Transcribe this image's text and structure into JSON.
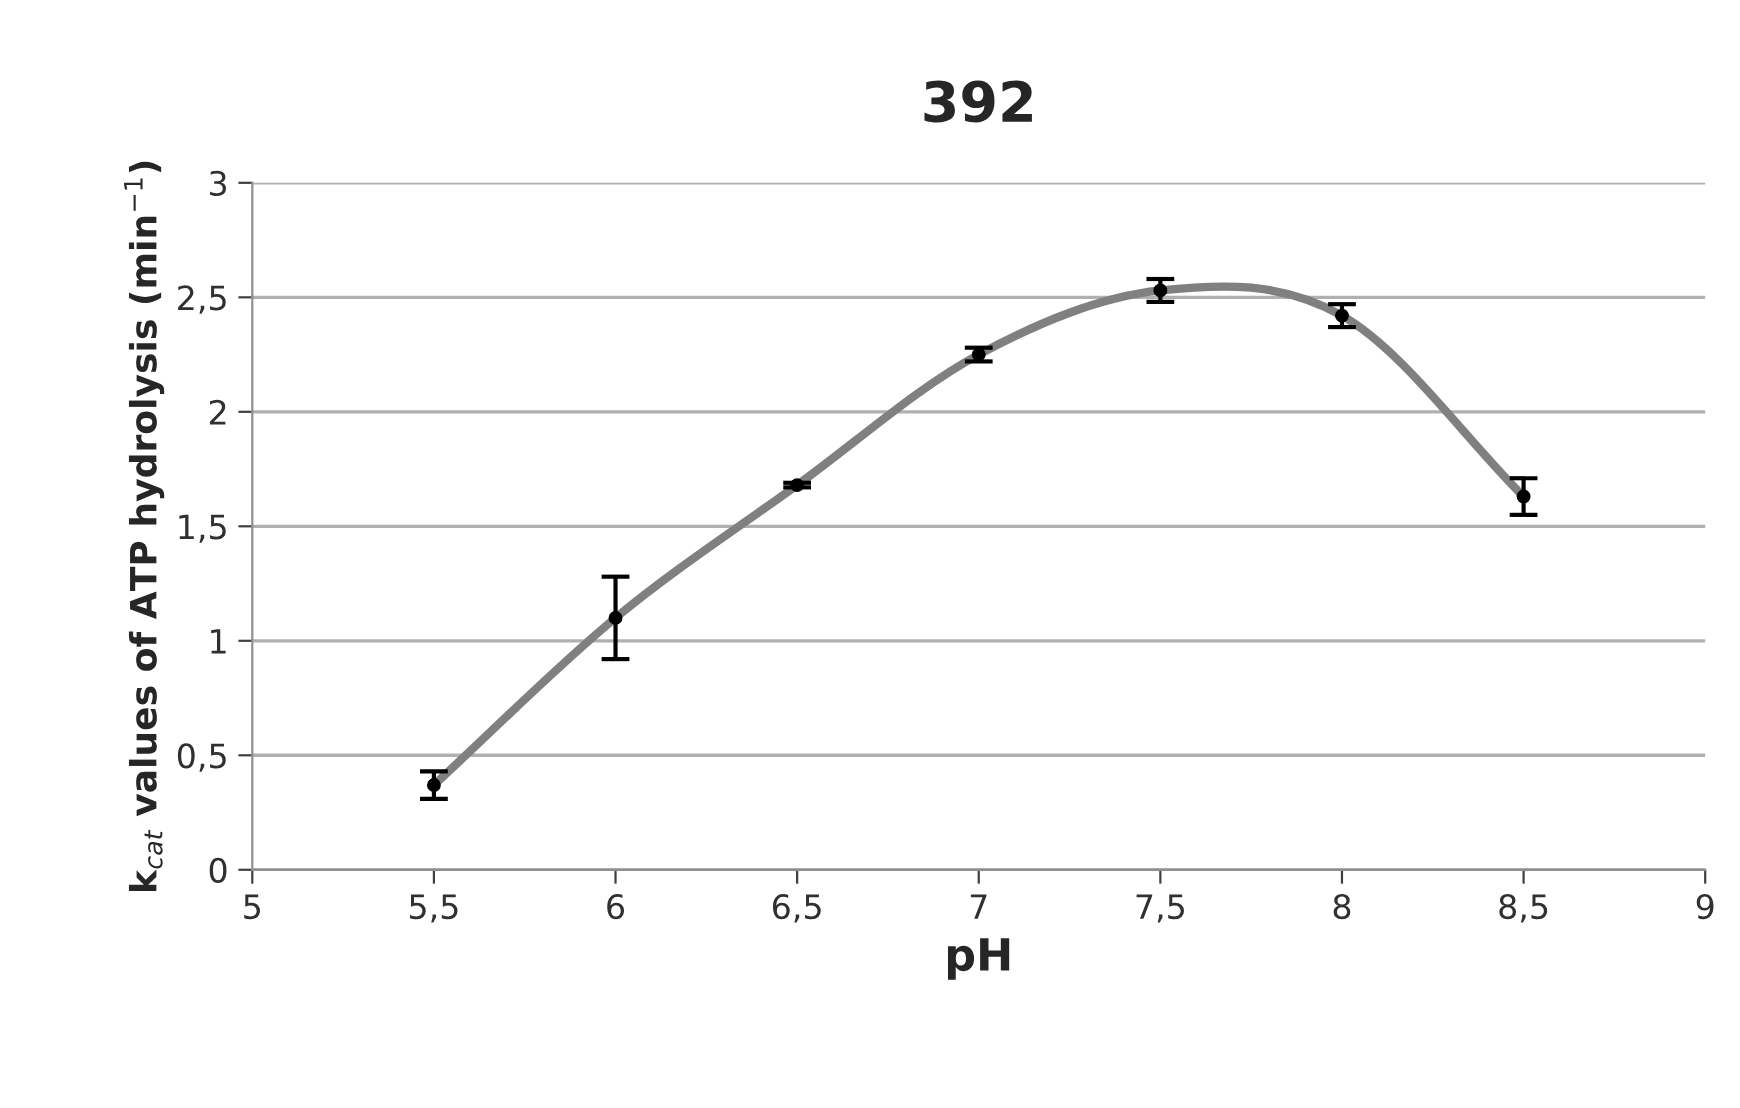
{
  "chart_data": {
    "type": "line",
    "title": "392",
    "xlabel": "pH",
    "ylabel": "k$_{cat}$ values of ATP hydrolysis (min$^{−1}$)",
    "x": [
      5.5,
      6,
      6.5,
      7,
      7.5,
      8,
      8.5
    ],
    "series": [
      {
        "color": "#808080",
        "values": [
          0.37,
          1.1,
          1.68,
          2.25,
          2.53,
          2.42,
          1.63
        ],
        "errors": [
          0.06,
          0.18,
          0.01,
          0.03,
          0.05,
          0.05,
          0.08
        ]
      }
    ],
    "xlim": [
      5,
      9
    ],
    "xticks": [
      5,
      {
        "value": 5.5,
        "label": "5,5"
      },
      6,
      {
        "value": 6.5,
        "label": "6,5"
      },
      7,
      {
        "value": 7.5,
        "label": "7,5"
      },
      8,
      {
        "value": 8.5,
        "label": "8,5"
      },
      9
    ],
    "ylim": [
      0,
      3
    ],
    "yticks": [
      0,
      {
        "value": 0.5,
        "label": "0,5"
      },
      1,
      {
        "value": 1.5,
        "label": "1,5"
      },
      2,
      {
        "value": 2.5,
        "label": "2,5"
      },
      3
    ],
    "grid": "y",
    "marker": "circle",
    "line_style": "solid",
    "legend": false
  }
}
